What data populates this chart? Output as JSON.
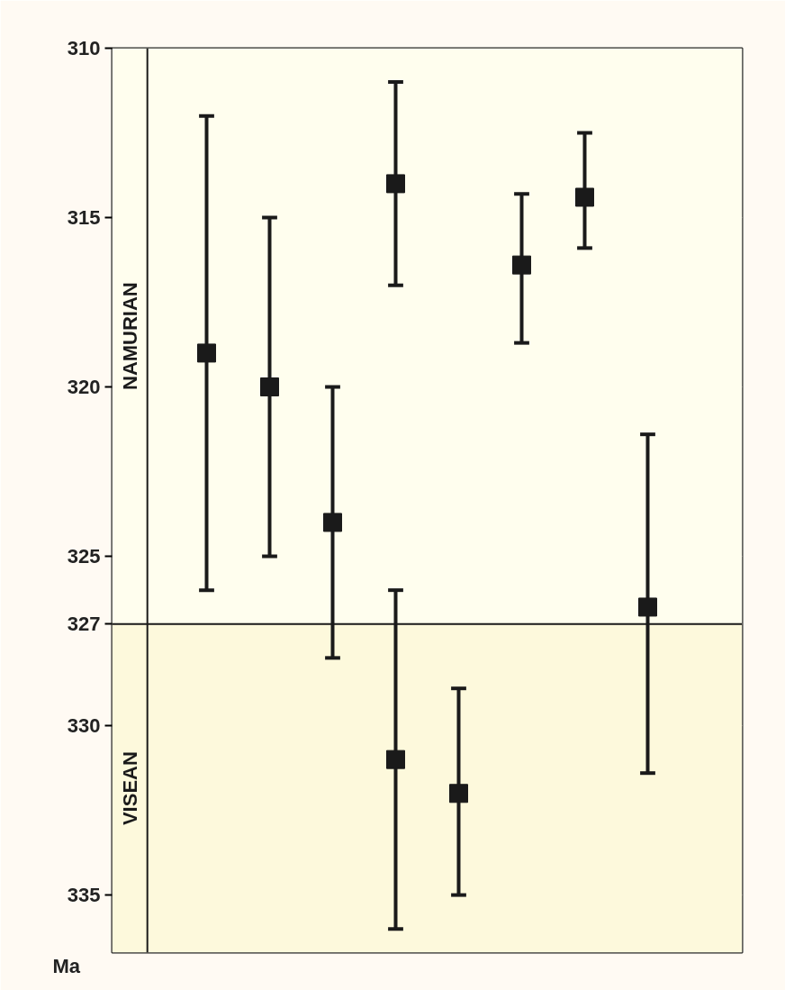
{
  "chart_data": {
    "type": "scatter",
    "ylabel": "Ma",
    "categories": [
      null,
      null,
      null,
      null,
      null,
      null,
      null,
      null,
      null,
      null
    ],
    "series": [
      {
        "color": "#1a1a1a",
        "values": [
          null,
          319,
          320,
          324,
          314,
          null,
          316.4,
          314.4,
          326.5,
          null
        ],
        "errors": [
          null,
          [
            312,
            326
          ],
          [
            315,
            325
          ],
          [
            320,
            328
          ],
          [
            311,
            317
          ],
          null,
          [
            314.3,
            318.7
          ],
          [
            312.5,
            315.9
          ],
          [
            321.4,
            331.4
          ],
          null
        ]
      },
      {
        "color": "#1a1a1a",
        "values": [
          null,
          null,
          null,
          null,
          331,
          332,
          null,
          null,
          null,
          null
        ],
        "errors": [
          null,
          null,
          null,
          null,
          [
            326,
            336
          ],
          [
            328.9,
            335
          ],
          null,
          null,
          null,
          null
        ]
      }
    ],
    "ylim": [
      336.7,
      310
    ],
    "yticks": [
      310,
      315,
      320,
      325,
      327,
      330,
      335
    ],
    "bands": [
      {
        "axis": "y",
        "from": 310,
        "to": 327,
        "label": "NAMURIAN",
        "color": "#fffeee"
      },
      {
        "axis": "y",
        "from": 327,
        "to": 336.7,
        "label": "VISEAN",
        "color": "#fdf9dc"
      }
    ],
    "ref_lines": [
      {
        "axis": "y",
        "value": 327
      }
    ],
    "grid": "y",
    "marker": "square"
  }
}
